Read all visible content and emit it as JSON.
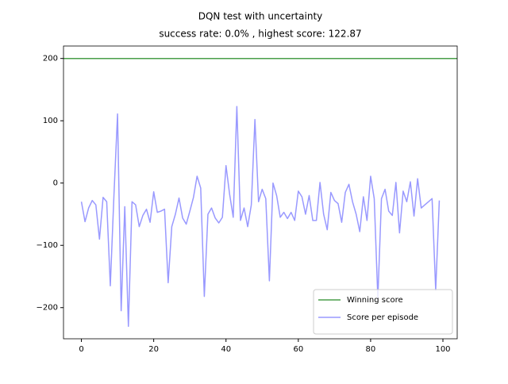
{
  "chart_data": {
    "type": "line",
    "title": "DQN test with uncertainty",
    "subtitle": "success rate: 0.0% , highest score: 122.87",
    "x": [
      0,
      1,
      2,
      3,
      4,
      5,
      6,
      7,
      8,
      9,
      10,
      11,
      12,
      13,
      14,
      15,
      16,
      17,
      18,
      19,
      20,
      21,
      22,
      23,
      24,
      25,
      26,
      27,
      28,
      29,
      30,
      31,
      32,
      33,
      34,
      35,
      36,
      37,
      38,
      39,
      40,
      41,
      42,
      43,
      44,
      45,
      46,
      47,
      48,
      49,
      50,
      51,
      52,
      53,
      54,
      55,
      56,
      57,
      58,
      59,
      60,
      61,
      62,
      63,
      64,
      65,
      66,
      67,
      68,
      69,
      70,
      71,
      72,
      73,
      74,
      75,
      76,
      77,
      78,
      79,
      80,
      81,
      82,
      83,
      84,
      85,
      86,
      87,
      88,
      89,
      90,
      91,
      92,
      93,
      94,
      95,
      96,
      97,
      98,
      99
    ],
    "series": [
      {
        "name": "Score per episode",
        "color": "#9999ff",
        "values": [
          -30,
          -62,
          -40,
          -28,
          -35,
          -90,
          -23,
          -30,
          -165,
          -20,
          111,
          -205,
          -38,
          -230,
          -30,
          -35,
          -70,
          -52,
          -42,
          -63,
          -14,
          -47,
          -45,
          -42,
          -160,
          -70,
          -50,
          -24,
          -56,
          -66,
          -45,
          -23,
          11,
          -8,
          -182,
          -50,
          -40,
          -56,
          -64,
          -55,
          28,
          -18,
          -55,
          122.87,
          -60,
          -40,
          -70,
          -35,
          102,
          -30,
          -10,
          -25,
          -157,
          0,
          -20,
          -55,
          -47,
          -57,
          -47,
          -60,
          -13,
          -22,
          -50,
          -20,
          -60,
          -60,
          1,
          -50,
          -75,
          -15,
          -28,
          -33,
          -63,
          -15,
          -2,
          -30,
          -50,
          -78,
          -22,
          -60,
          11,
          -25,
          -185,
          -25,
          -10,
          -45,
          -52,
          1,
          -80,
          -13,
          -30,
          2,
          -53,
          7,
          -40,
          -35,
          -30,
          -25,
          -172,
          -28
        ]
      }
    ],
    "reference_line": {
      "name": "Winning score",
      "value": 200,
      "color": "#4a9e4a"
    },
    "xlim": [
      -4.95,
      103.95
    ],
    "xticks": [
      0,
      20,
      40,
      60,
      80,
      100
    ],
    "ylim": [
      -250,
      220
    ],
    "yticks": [
      {
        "value": -200,
        "label": "−200"
      },
      {
        "value": -100,
        "label": "−100"
      },
      0,
      100,
      200
    ],
    "legend": "lower right"
  }
}
